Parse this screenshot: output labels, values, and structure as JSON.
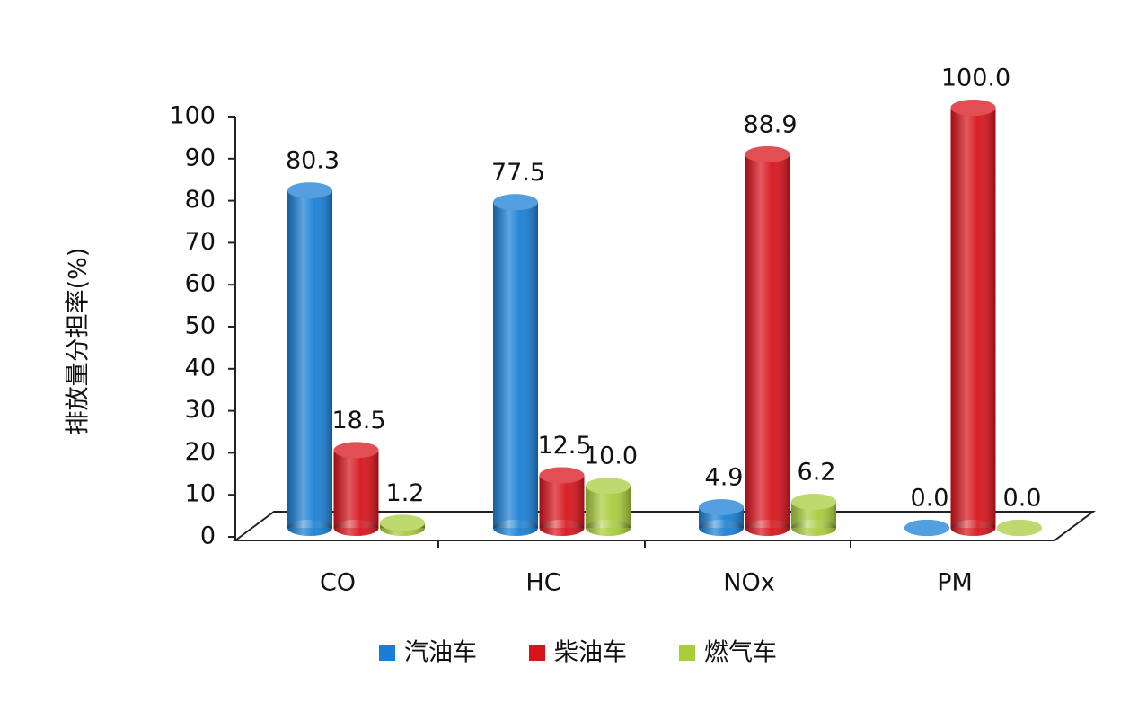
{
  "chart_data": {
    "type": "bar3d",
    "y_label": "排放量分担率(%)",
    "categories": [
      "CO",
      "HC",
      "NOx",
      "PM"
    ],
    "series": [
      {
        "name": "汽油车",
        "color": "#1a7fd4",
        "values": [
          80.3,
          77.5,
          4.9,
          0.0
        ],
        "value_labels": [
          "80.3",
          "77.5",
          "4.9",
          "0.0"
        ]
      },
      {
        "name": "柴油车",
        "color": "#d7141c",
        "values": [
          18.5,
          12.5,
          88.9,
          100.0
        ],
        "value_labels": [
          "18.5",
          "12.5",
          "88.9",
          "100.0"
        ]
      },
      {
        "name": "燃气车",
        "color": "#a8cc3c",
        "values": [
          1.2,
          10.0,
          6.2,
          0.0
        ],
        "value_labels": [
          "1.2",
          "10.0",
          "6.2",
          "0.0"
        ]
      }
    ],
    "ylim": [
      0,
      100
    ],
    "yticks": [
      0,
      10,
      20,
      30,
      40,
      50,
      60,
      70,
      80,
      90,
      100
    ],
    "legend": "bottom"
  }
}
